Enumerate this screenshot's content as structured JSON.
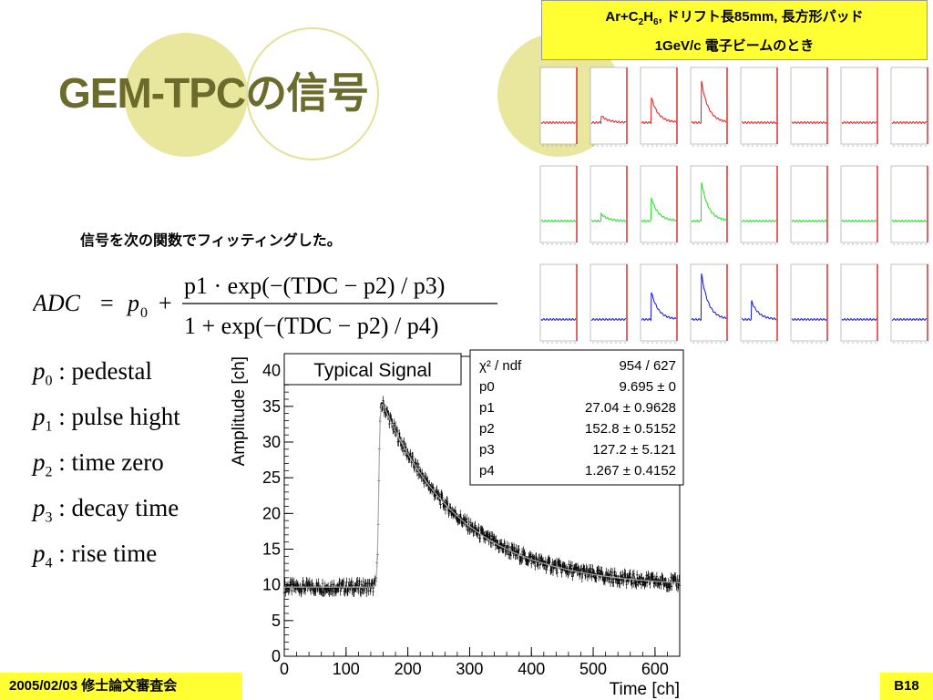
{
  "slide": {
    "title": "GEM-TPCの信号",
    "info_line1_parts": [
      "Ar+C",
      "2",
      "H",
      "6",
      ", ドリフト長85mm, 長方形パッド"
    ],
    "info_line2": "1GeV/c 電子ビームのとき",
    "fit_text": "信号を次の関数でフィッティングした。",
    "footer_date": "2005/02/03 修士論文審査会",
    "page_number": "B18"
  },
  "formula": {
    "lhs": "ADC",
    "p0": "p",
    "p0_sub": "0",
    "numerator": "p1 · exp(−(TDC − p2) / p3)",
    "denominator": "1 + exp(−(TDC − p2) / p4)"
  },
  "parameters": [
    {
      "sym": "p",
      "sub": "0",
      "desc": ": pedestal"
    },
    {
      "sym": "p",
      "sub": "1",
      "desc": ": pulse hight"
    },
    {
      "sym": "p",
      "sub": "2",
      "desc": ": time zero"
    },
    {
      "sym": "p",
      "sub": "3",
      "desc": ": decay time"
    },
    {
      "sym": "p",
      "sub": "4",
      "desc": ": rise time"
    }
  ],
  "colors": {
    "title": "#6b6b2c",
    "deco_circle": "#e9e79e",
    "yellow_box": "#ffff33",
    "row_red": "#e8191a",
    "row_green": "#1fe01f",
    "row_blue": "#1212e0",
    "panel_frame": "#cc0000"
  },
  "chart_data": {
    "type": "scatter",
    "title": "Typical Signal",
    "xlabel": "Time [ch]",
    "ylabel": "Amplitude [ch]",
    "xlim": [
      0,
      640
    ],
    "ylim": [
      0,
      42
    ],
    "xticks": [
      0,
      100,
      200,
      300,
      400,
      500,
      600
    ],
    "yticks": [
      0,
      5,
      10,
      15,
      20,
      25,
      30,
      35,
      40
    ],
    "fit": {
      "p0": 9.695,
      "p1": 27.04,
      "p2": 152.8,
      "p3": 127.2,
      "p4": 1.267
    },
    "stats": [
      {
        "name": "χ² / ndf",
        "value": "954 / 627"
      },
      {
        "name": "p0",
        "value": "9.695 ±     0"
      },
      {
        "name": "p1",
        "value": "27.04 ± 0.9628"
      },
      {
        "name": "p2",
        "value": "152.8 ± 0.5152"
      },
      {
        "name": "p3",
        "value": "127.2 ± 5.121"
      },
      {
        "name": "p4",
        "value": "1.267 ± 0.4152"
      }
    ]
  },
  "pad_grid": {
    "rows": [
      "red",
      "green",
      "blue"
    ],
    "amplitudes": [
      [
        0.0,
        0.15,
        0.55,
        0.9,
        0.0,
        0.0,
        0.0,
        0.0
      ],
      [
        0.0,
        0.15,
        0.5,
        0.85,
        0.0,
        0.0,
        0.0,
        0.0
      ],
      [
        0.0,
        0.0,
        0.6,
        1.0,
        0.4,
        0.0,
        0.0,
        0.0
      ]
    ]
  }
}
